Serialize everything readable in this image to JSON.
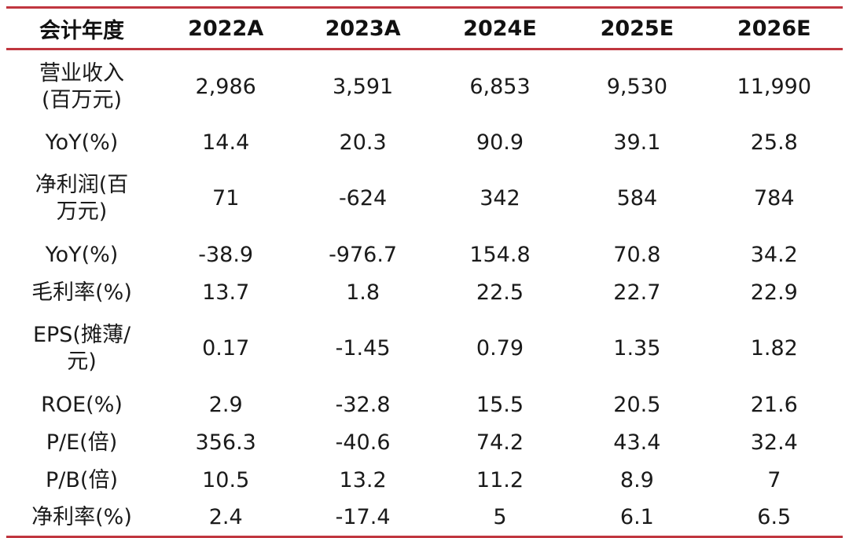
{
  "table": {
    "header": [
      "会计年度",
      "2022A",
      "2023A",
      "2024E",
      "2025E",
      "2026E"
    ],
    "rows": [
      {
        "label": "营业收入\n(百万元)",
        "values": [
          "2,986",
          "3,591",
          "6,853",
          "9,530",
          "11,990"
        ]
      },
      {
        "label": "YoY(%)",
        "values": [
          "14.4",
          "20.3",
          "90.9",
          "39.1",
          "25.8"
        ]
      },
      {
        "label": "净利润(百\n万元)",
        "values": [
          "71",
          "-624",
          "342",
          "584",
          "784"
        ]
      },
      {
        "label": "YoY(%)",
        "values": [
          "-38.9",
          "-976.7",
          "154.8",
          "70.8",
          "34.2"
        ]
      },
      {
        "label": "毛利率(%)",
        "values": [
          "13.7",
          "1.8",
          "22.5",
          "22.7",
          "22.9"
        ]
      },
      {
        "label": "EPS(摊薄/\n元)",
        "values": [
          "0.17",
          "-1.45",
          "0.79",
          "1.35",
          "1.82"
        ]
      },
      {
        "label": "ROE(%)",
        "values": [
          "2.9",
          "-32.8",
          "15.5",
          "20.5",
          "21.6"
        ]
      },
      {
        "label": "P/E(倍)",
        "values": [
          "356.3",
          "-40.6",
          "74.2",
          "43.4",
          "32.4"
        ]
      },
      {
        "label": "P/B(倍)",
        "values": [
          "10.5",
          "13.2",
          "11.2",
          "8.9",
          "7"
        ]
      },
      {
        "label": "净利率(%)",
        "values": [
          "2.4",
          "-17.4",
          "5",
          "6.1",
          "6.5"
        ]
      }
    ]
  },
  "colors": {
    "rule": "#c0363f",
    "text": "#1a1a1a"
  }
}
